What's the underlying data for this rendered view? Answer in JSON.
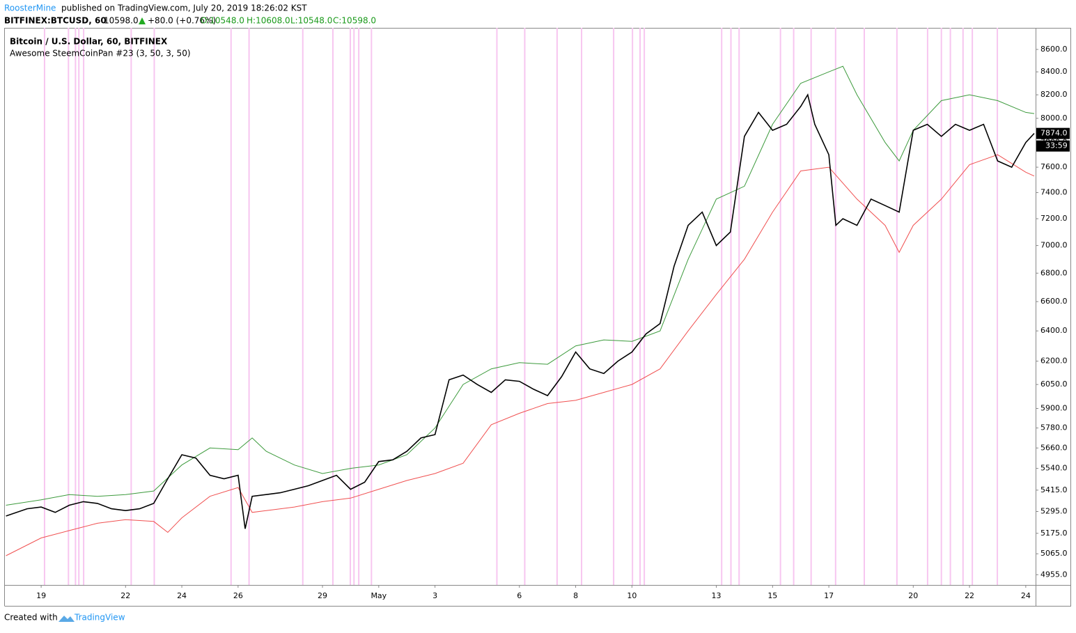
{
  "header": {
    "publisher": "RoosterMine",
    "published": "published on TradingView.com, July 20, 2019 18:26:02 KST",
    "symbol": "BITFINEX:BTCUSD, 60",
    "price": "10598.0",
    "change": "+80.0 (+0.76%)",
    "open": "O:10548.0",
    "high": "H:10608.0",
    "low": "L:10548.0",
    "close": "C:10598.0"
  },
  "footer": {
    "created": "Created with",
    "brand": "TradingView"
  },
  "chart_data": {
    "type": "line",
    "title": "Bitcoin / U.S. Dollar, 60, BITFINEX",
    "subtitle": "Awesome SteemCoinPan #23 (3, 50, 3, 50)",
    "log_scale": true,
    "xlim": [
      -1.29,
      35.35
    ],
    "xticks": [
      {
        "value": 0,
        "label": "19"
      },
      {
        "value": 3,
        "label": "22"
      },
      {
        "value": 5,
        "label": "24"
      },
      {
        "value": 7,
        "label": "26"
      },
      {
        "value": 10,
        "label": "29"
      },
      {
        "value": 12,
        "label": "May"
      },
      {
        "value": 14,
        "label": "3"
      },
      {
        "value": 17,
        "label": "6"
      },
      {
        "value": 19,
        "label": "8"
      },
      {
        "value": 21,
        "label": "10"
      },
      {
        "value": 24,
        "label": "13"
      },
      {
        "value": 26,
        "label": "15"
      },
      {
        "value": 28,
        "label": "17"
      },
      {
        "value": 31,
        "label": "20"
      },
      {
        "value": 33,
        "label": "22"
      },
      {
        "value": 35,
        "label": "24"
      }
    ],
    "ylim": [
      4902,
      8797
    ],
    "yticks": [
      {
        "value": 4955,
        "label": "4955.0"
      },
      {
        "value": 5065,
        "label": "5065.0"
      },
      {
        "value": 5175,
        "label": "5175.0"
      },
      {
        "value": 5295,
        "label": "5295.0"
      },
      {
        "value": 5415,
        "label": "5415.0"
      },
      {
        "value": 5540,
        "label": "5540.0"
      },
      {
        "value": 5660,
        "label": "5660.0"
      },
      {
        "value": 5780,
        "label": "5780.0"
      },
      {
        "value": 5900,
        "label": "5900.0"
      },
      {
        "value": 6050,
        "label": "6050.0"
      },
      {
        "value": 6200,
        "label": "6200.0"
      },
      {
        "value": 6400,
        "label": "6400.0"
      },
      {
        "value": 6600,
        "label": "6600.0"
      },
      {
        "value": 6800,
        "label": "6800.0"
      },
      {
        "value": 7000,
        "label": "7000.0"
      },
      {
        "value": 7200,
        "label": "7200.0"
      },
      {
        "value": 7400,
        "label": "7400.0"
      },
      {
        "value": 7600,
        "label": "7600.0"
      },
      {
        "value": 7800,
        "label": "7800.0"
      },
      {
        "value": 8000,
        "label": "8000.0"
      },
      {
        "value": 8200,
        "label": "8200.0"
      },
      {
        "value": 8400,
        "label": "8400.0"
      },
      {
        "value": 8600,
        "label": "8600.0"
      }
    ],
    "signal_x": [
      0.12,
      0.97,
      1.22,
      1.34,
      1.51,
      3.2,
      4.02,
      6.75,
      7.39,
      9.3,
      10.37,
      10.99,
      11.12,
      11.29,
      11.74,
      16.2,
      17.19,
      18.34,
      19.21,
      20.35,
      21.02,
      21.29,
      21.44,
      24.19,
      24.52,
      24.81,
      26.28,
      26.75,
      27.37,
      28.24,
      29.26,
      30.42,
      31.51,
      32.0,
      32.32,
      32.77,
      33.1,
      33.99
    ],
    "signal_color": "#f7c6f0",
    "last": {
      "value": 7874,
      "label": "7874.0"
    },
    "countdown": "33:59",
    "series": [
      {
        "color": "#3c9a3c",
        "x": [
          -1.25,
          0,
          1,
          2,
          3,
          4,
          5,
          6,
          7,
          7.5,
          8,
          9,
          10,
          11,
          12,
          13,
          14,
          15,
          16,
          17,
          18,
          19,
          20,
          21,
          22,
          23,
          24,
          25,
          26,
          27,
          28,
          28.5,
          29,
          30,
          30.5,
          31,
          32,
          33,
          34,
          35,
          35.3
        ],
        "values": [
          5330,
          5360,
          5390,
          5380,
          5390,
          5410,
          5560,
          5660,
          5650,
          5720,
          5640,
          5560,
          5510,
          5540,
          5560,
          5620,
          5780,
          6050,
          6150,
          6190,
          6180,
          6300,
          6340,
          6330,
          6400,
          6900,
          7350,
          7450,
          7950,
          8300,
          8400,
          8450,
          8200,
          7800,
          7650,
          7900,
          8150,
          8200,
          8150,
          8050,
          8040
        ]
      },
      {
        "color": "#f05050",
        "x": [
          -1.25,
          0,
          1,
          2,
          3,
          4,
          4.5,
          5,
          6,
          7,
          7.5,
          8,
          9,
          10,
          11,
          12,
          13,
          14,
          15,
          16,
          17,
          18,
          19,
          20,
          21,
          22,
          23,
          24,
          25,
          26,
          27,
          28,
          29,
          30,
          30.5,
          31,
          32,
          33,
          34,
          35,
          35.3
        ],
        "values": [
          5055,
          5150,
          5190,
          5230,
          5250,
          5240,
          5180,
          5260,
          5380,
          5430,
          5290,
          5300,
          5320,
          5350,
          5370,
          5420,
          5470,
          5510,
          5570,
          5800,
          5870,
          5930,
          5950,
          6000,
          6050,
          6150,
          6400,
          6650,
          6900,
          7250,
          7570,
          7600,
          7350,
          7150,
          6950,
          7150,
          7350,
          7620,
          7700,
          7560,
          7530
        ]
      },
      {
        "color": "#000000",
        "x": [
          -1.25,
          -0.5,
          0,
          0.5,
          1,
          1.5,
          2,
          2.5,
          3,
          3.5,
          4,
          4.5,
          5,
          5.5,
          6,
          6.5,
          7,
          7.25,
          7.5,
          8,
          8.5,
          9,
          9.5,
          10,
          10.5,
          11,
          11.5,
          12,
          12.5,
          13,
          13.5,
          14,
          14.5,
          15,
          15.5,
          16,
          16.5,
          17,
          17.5,
          18,
          18.5,
          19,
          19.5,
          20,
          20.5,
          21,
          21.5,
          22,
          22.5,
          23,
          23.5,
          24,
          24.5,
          25,
          25.5,
          26,
          26.5,
          27,
          27.25,
          27.5,
          28,
          28.25,
          28.5,
          29,
          29.5,
          30,
          30.5,
          31,
          31.5,
          32,
          32.5,
          33,
          33.5,
          34,
          34.5,
          35,
          35.3
        ],
        "values": [
          5270,
          5310,
          5320,
          5290,
          5330,
          5350,
          5340,
          5310,
          5300,
          5310,
          5340,
          5480,
          5620,
          5600,
          5500,
          5480,
          5500,
          5200,
          5380,
          5390,
          5400,
          5420,
          5440,
          5470,
          5500,
          5420,
          5460,
          5580,
          5590,
          5640,
          5720,
          5740,
          6080,
          6110,
          6050,
          6000,
          6080,
          6070,
          6020,
          5980,
          6100,
          6260,
          6150,
          6120,
          6200,
          6260,
          6380,
          6450,
          6850,
          7150,
          7250,
          7000,
          7100,
          7850,
          8050,
          7900,
          7950,
          8100,
          8200,
          7950,
          7700,
          7150,
          7200,
          7150,
          7350,
          7300,
          7250,
          7900,
          7950,
          7850,
          7950,
          7900,
          7950,
          7650,
          7600,
          7800,
          7874
        ]
      }
    ]
  }
}
